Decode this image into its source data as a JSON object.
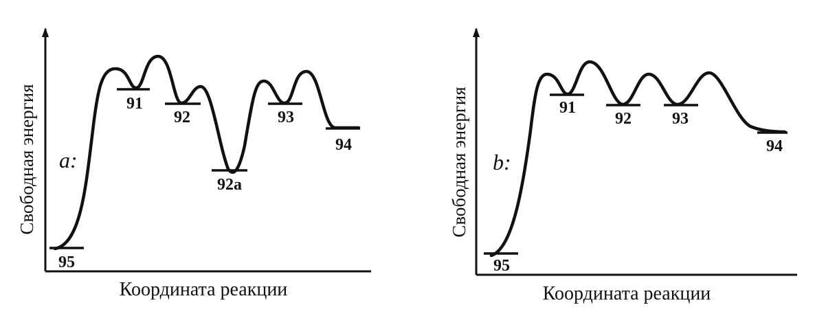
{
  "panels": [
    {
      "id": "a",
      "panel_label": "a:",
      "y_axis_label": "Свободная энергия",
      "x_axis_label": "Координата реакции",
      "levels": [
        "95",
        "91",
        "92",
        "92a",
        "93",
        "94"
      ],
      "level_captions": {
        "95": "95",
        "91": "91",
        "92": "92",
        "92a": "92a",
        "93": "93",
        "94": "94"
      }
    },
    {
      "id": "b",
      "panel_label": "b:",
      "y_axis_label": "Свободная энергия",
      "x_axis_label": "Координата реакции",
      "levels": [
        "95",
        "91",
        "92",
        "93",
        "94"
      ],
      "level_captions": {
        "95": "95",
        "91": "91",
        "92": "92",
        "93": "93",
        "94": "94"
      }
    }
  ]
}
